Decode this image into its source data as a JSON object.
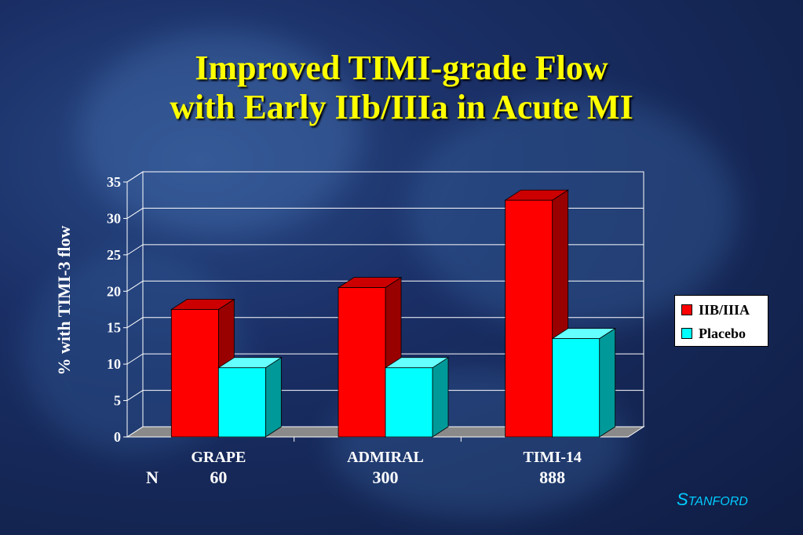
{
  "title": {
    "line1": "Improved TIMI-grade Flow",
    "line2": "with Early IIb/IIIa in Acute MI"
  },
  "footer_brand": {
    "first": "S",
    "rest": "TANFORD"
  },
  "n_label": "N",
  "colors": {
    "iib": "#ff0000",
    "iib_side": "#990000",
    "placebo": "#00ffff",
    "placebo_side": "#009999",
    "title": "#ffff00",
    "brand": "#00ccff"
  },
  "chart_data": {
    "type": "bar",
    "title": "",
    "xlabel": "",
    "ylabel": "% with TIMI-3 flow",
    "ylim": [
      0,
      35
    ],
    "yticks": [
      0,
      5,
      10,
      15,
      20,
      25,
      30,
      35
    ],
    "grid": true,
    "legend_position": "right",
    "categories": [
      "GRAPE",
      "ADMIRAL",
      "TIMI-14"
    ],
    "n_values": [
      "60",
      "300",
      "888"
    ],
    "series": [
      {
        "name": "IIB/IIIA",
        "values": [
          17.5,
          20.5,
          32.5
        ]
      },
      {
        "name": "Placebo",
        "values": [
          9.5,
          9.5,
          13.5
        ]
      }
    ]
  }
}
